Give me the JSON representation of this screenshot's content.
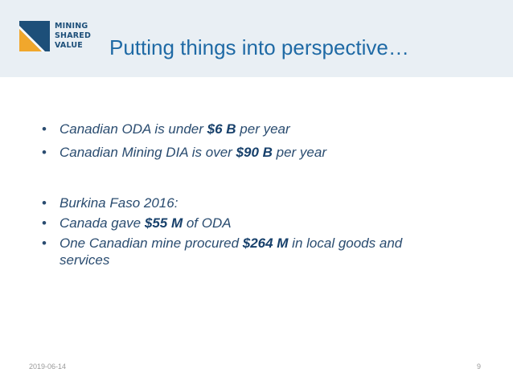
{
  "colors": {
    "header_bg": "#e9eff4",
    "logo_navy": "#1d4f79",
    "logo_orange": "#f1a72c",
    "title_blue": "#1f6aa5",
    "body_text": "#2a4c70"
  },
  "logo": {
    "line1": "MINING",
    "line2": "SHARED",
    "line3": "VALUE"
  },
  "title": "Putting things into perspective…",
  "bullets": [
    {
      "pre": "Canadian ODA is under ",
      "amount": "$6 B",
      "post": " per year"
    },
    {
      "pre": "Canadian Mining DIA is over ",
      "amount": "$90 B",
      "post": " per year"
    },
    {
      "pre": "Burkina Faso 2016:",
      "amount": "",
      "post": ""
    },
    {
      "pre": "Canada gave ",
      "amount": "$55 M",
      "post": " of ODA"
    },
    {
      "pre": "One Canadian mine procured ",
      "amount": "$264 M",
      "post": " in local goods and services"
    }
  ],
  "bullet_symbol": "•",
  "footer": {
    "date": "2019-06-14",
    "page": "9"
  }
}
